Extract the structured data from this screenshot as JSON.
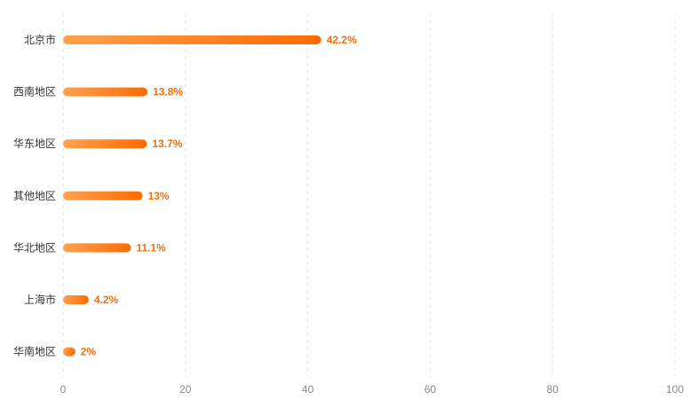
{
  "chart_data": {
    "type": "bar",
    "orientation": "horizontal",
    "categories": [
      "北京市",
      "西南地区",
      "华东地区",
      "其他地区",
      "华北地区",
      "上海市",
      "华南地区"
    ],
    "values": [
      42.2,
      13.8,
      13.7,
      13,
      11.1,
      4.2,
      2
    ],
    "value_labels": [
      "42.2%",
      "13.8%",
      "13.7%",
      "13%",
      "11.1%",
      "4.2%",
      "2%"
    ],
    "xlim": [
      0,
      100
    ],
    "x_ticks": [
      "0",
      "20",
      "40",
      "60",
      "80",
      "100"
    ],
    "grid": "vertical dashed",
    "colors": {
      "bar_start": "#ffa14f",
      "bar_end": "#ff6a00",
      "value_label": "#f07010",
      "category_label": "#333333",
      "tick_label": "#888888",
      "grid": "#e6e6e6"
    }
  }
}
